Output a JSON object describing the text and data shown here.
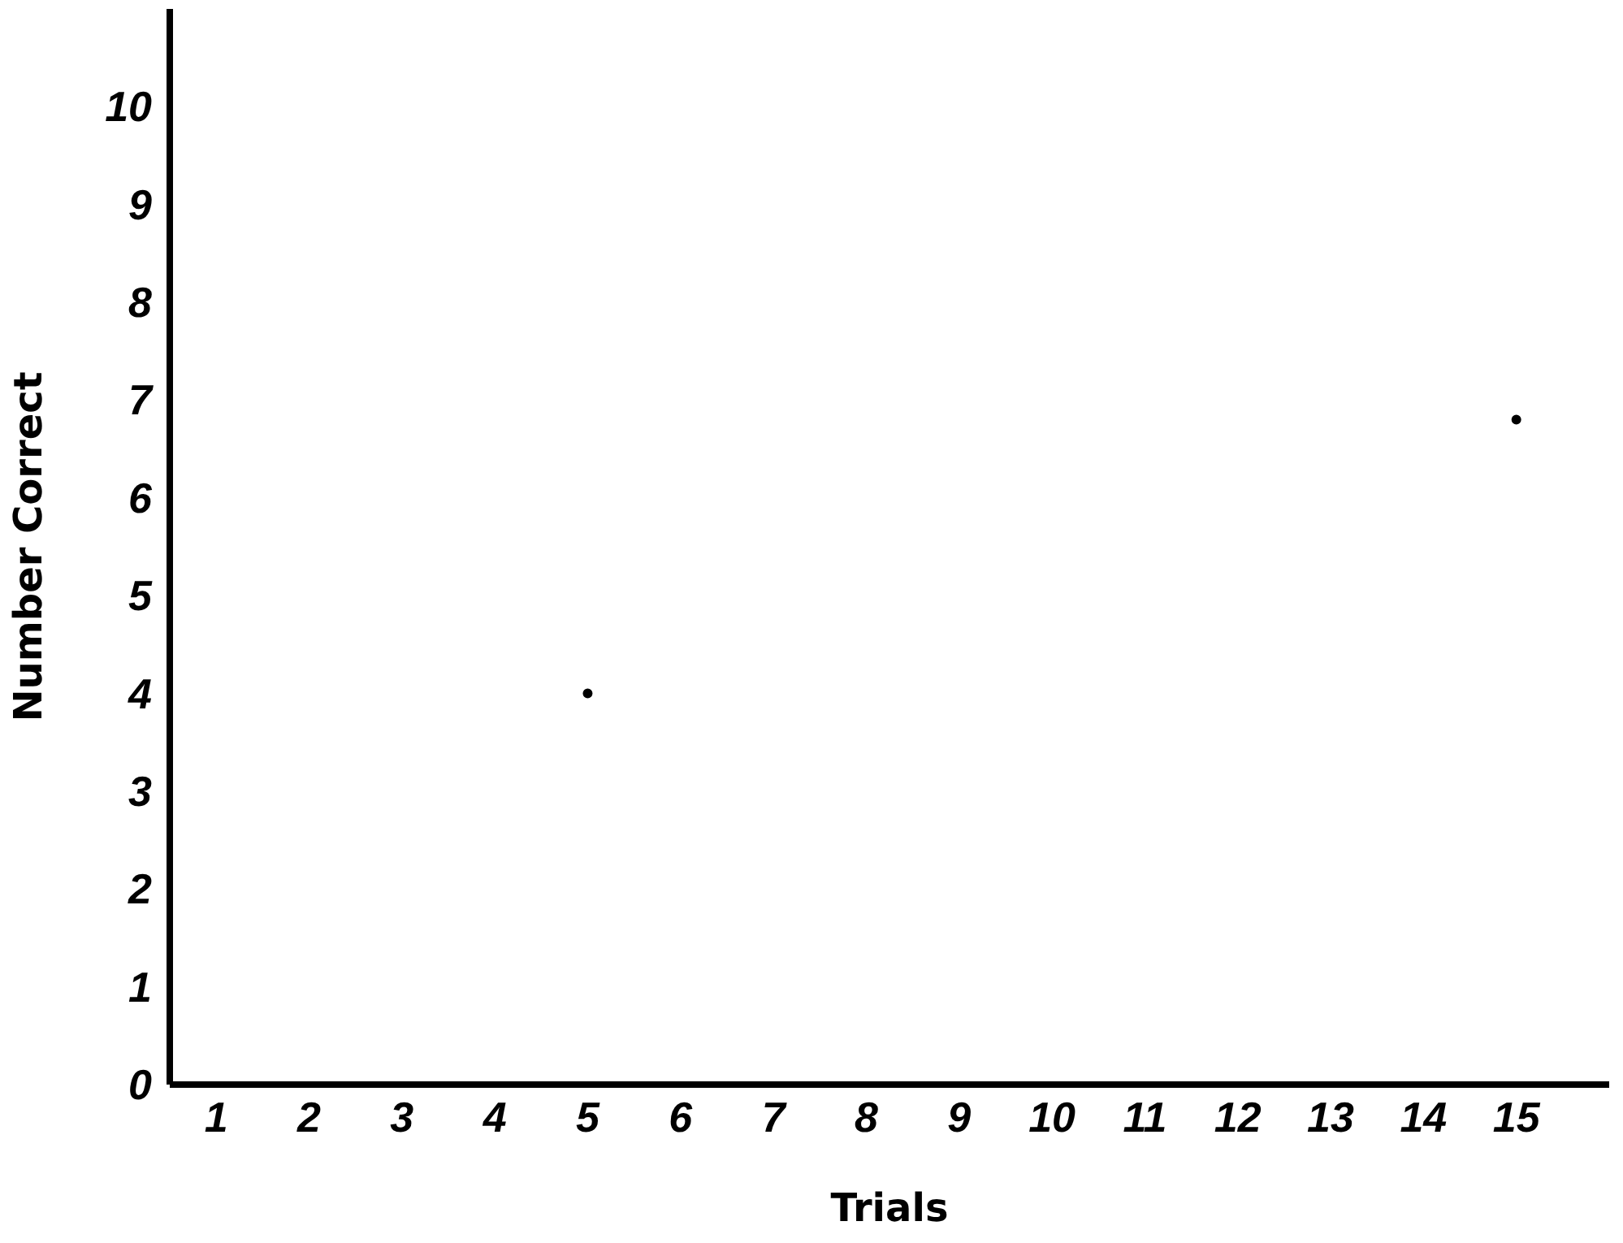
{
  "chart_data": {
    "type": "scatter",
    "xlabel": "Trials",
    "ylabel": "Number Correct",
    "x": [
      5,
      15
    ],
    "series": [
      {
        "color": "#000000",
        "values": [
          4,
          6.8
        ]
      }
    ],
    "xlim": [
      0.5,
      16
    ],
    "xticks": [
      1,
      2,
      3,
      4,
      5,
      6,
      7,
      8,
      9,
      10,
      11,
      12,
      13,
      14,
      15
    ],
    "ylim": [
      0,
      11
    ],
    "yticks": [
      0,
      1,
      2,
      3,
      4,
      5,
      6,
      7,
      8,
      9,
      10
    ],
    "grid": false,
    "marker": "circle"
  }
}
